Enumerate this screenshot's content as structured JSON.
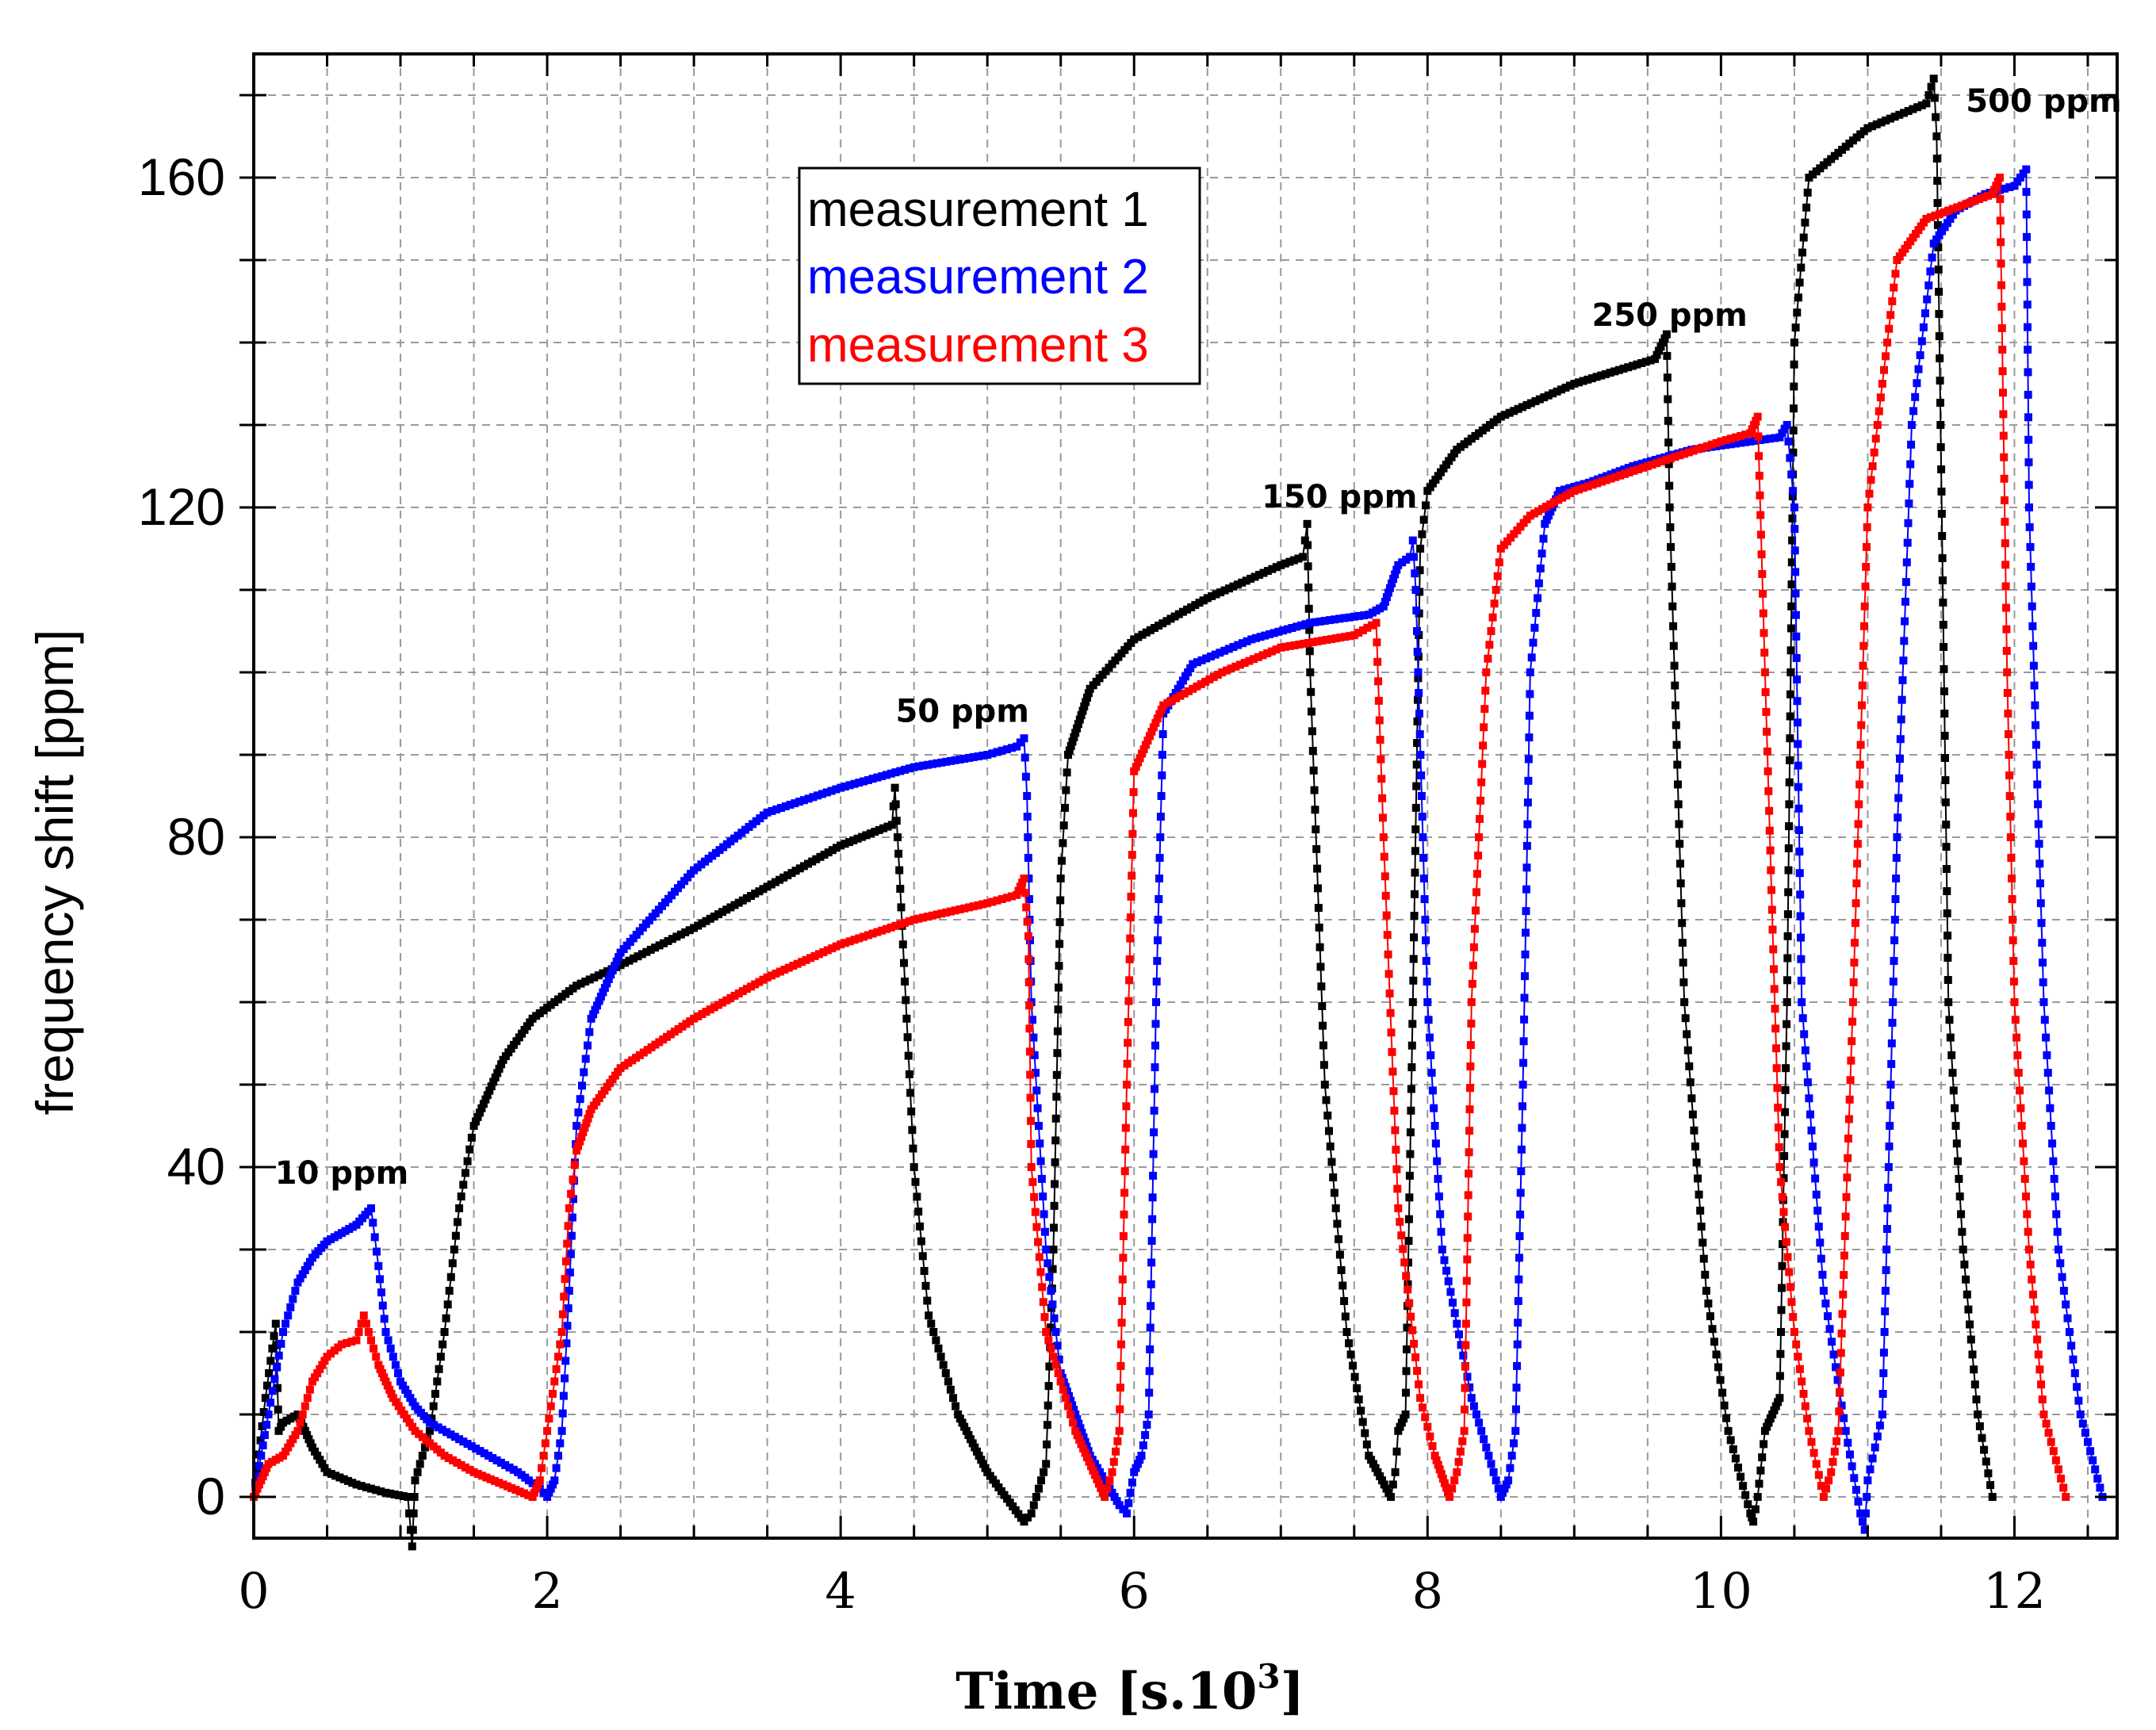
{
  "chart_data": {
    "type": "line",
    "xlabel": "Time [s.10",
    "xlabel_sup": "3",
    "xlabel_end": "]",
    "ylabel": "frequency shift  [ppm]",
    "xlim": [
      0,
      12.7
    ],
    "ylim": [
      -5,
      175
    ],
    "x_ticks": [
      0,
      2,
      4,
      6,
      8,
      10,
      12
    ],
    "y_ticks": [
      0,
      40,
      80,
      120,
      160
    ],
    "grid": true,
    "legend_position": "top-center",
    "annotations": [
      {
        "text": "10 ppm",
        "x": 0.6,
        "y": 38
      },
      {
        "text": "50 ppm",
        "x": 4.83,
        "y": 94
      },
      {
        "text": "150 ppm",
        "x": 7.4,
        "y": 120
      },
      {
        "text": "250 ppm",
        "x": 9.65,
        "y": 142
      },
      {
        "text": "500 ppm",
        "x": 12.2,
        "y": 168
      }
    ],
    "series": [
      {
        "name": "measurement 1",
        "color": "#000000",
        "points": [
          [
            0,
            0
          ],
          [
            0.08,
            12
          ],
          [
            0.15,
            21
          ],
          [
            0.17,
            8
          ],
          [
            0.2,
            9
          ],
          [
            0.3,
            10
          ],
          [
            0.4,
            6
          ],
          [
            0.5,
            3
          ],
          [
            0.7,
            1.5
          ],
          [
            0.9,
            0.5
          ],
          [
            1.05,
            0
          ],
          [
            1.08,
            -6
          ],
          [
            1.1,
            2
          ],
          [
            1.2,
            8
          ],
          [
            1.3,
            20
          ],
          [
            1.4,
            35
          ],
          [
            1.5,
            45
          ],
          [
            1.7,
            53
          ],
          [
            1.9,
            58
          ],
          [
            2.2,
            62
          ],
          [
            2.5,
            64.5
          ],
          [
            3.0,
            69
          ],
          [
            3.5,
            74
          ],
          [
            4.0,
            79
          ],
          [
            4.35,
            81.5
          ],
          [
            4.37,
            86
          ],
          [
            4.4,
            76
          ],
          [
            4.5,
            40
          ],
          [
            4.6,
            22
          ],
          [
            4.8,
            10
          ],
          [
            5.0,
            3
          ],
          [
            5.25,
            -3
          ],
          [
            5.3,
            -2
          ],
          [
            5.35,
            1
          ],
          [
            5.4,
            4
          ],
          [
            5.45,
            30
          ],
          [
            5.5,
            75
          ],
          [
            5.55,
            90
          ],
          [
            5.7,
            98
          ],
          [
            6.0,
            104
          ],
          [
            6.5,
            109
          ],
          [
            7.0,
            113
          ],
          [
            7.15,
            114
          ],
          [
            7.18,
            118
          ],
          [
            7.2,
            100
          ],
          [
            7.3,
            50
          ],
          [
            7.45,
            20
          ],
          [
            7.6,
            5
          ],
          [
            7.75,
            0
          ],
          [
            7.78,
            3
          ],
          [
            7.8,
            8
          ],
          [
            7.85,
            10
          ],
          [
            7.9,
            60
          ],
          [
            7.95,
            115
          ],
          [
            8.0,
            122
          ],
          [
            8.2,
            127
          ],
          [
            8.5,
            131
          ],
          [
            9.0,
            135
          ],
          [
            9.55,
            138
          ],
          [
            9.63,
            141
          ],
          [
            9.65,
            120
          ],
          [
            9.75,
            60
          ],
          [
            9.9,
            25
          ],
          [
            10.05,
            8
          ],
          [
            10.2,
            -2
          ],
          [
            10.22,
            -3
          ],
          [
            10.25,
            0
          ],
          [
            10.3,
            8
          ],
          [
            10.4,
            12
          ],
          [
            10.45,
            60
          ],
          [
            10.5,
            140
          ],
          [
            10.6,
            160
          ],
          [
            11.0,
            166
          ],
          [
            11.4,
            169
          ],
          [
            11.45,
            172
          ],
          [
            11.47,
            165
          ],
          [
            11.55,
            60
          ],
          [
            11.65,
            30
          ],
          [
            11.75,
            10
          ],
          [
            11.85,
            0
          ]
        ]
      },
      {
        "name": "measurement 2",
        "color": "#0000ff",
        "points": [
          [
            0,
            0
          ],
          [
            0.05,
            5
          ],
          [
            0.1,
            10
          ],
          [
            0.2,
            20
          ],
          [
            0.3,
            26
          ],
          [
            0.4,
            29
          ],
          [
            0.5,
            31
          ],
          [
            0.6,
            32
          ],
          [
            0.7,
            33
          ],
          [
            0.8,
            35
          ],
          [
            0.85,
            28
          ],
          [
            0.9,
            20
          ],
          [
            1.0,
            14
          ],
          [
            1.1,
            11
          ],
          [
            1.2,
            9
          ],
          [
            1.4,
            7
          ],
          [
            1.6,
            5
          ],
          [
            1.8,
            3
          ],
          [
            1.95,
            1
          ],
          [
            2.0,
            0
          ],
          [
            2.05,
            2
          ],
          [
            2.1,
            8
          ],
          [
            2.15,
            25
          ],
          [
            2.2,
            45
          ],
          [
            2.3,
            58
          ],
          [
            2.5,
            66
          ],
          [
            3.0,
            76
          ],
          [
            3.5,
            83
          ],
          [
            4.0,
            86
          ],
          [
            4.5,
            88.5
          ],
          [
            5.0,
            90
          ],
          [
            5.2,
            91
          ],
          [
            5.25,
            92
          ],
          [
            5.27,
            85
          ],
          [
            5.3,
            60
          ],
          [
            5.4,
            30
          ],
          [
            5.5,
            15
          ],
          [
            5.7,
            5
          ],
          [
            5.9,
            -1
          ],
          [
            5.95,
            -2
          ],
          [
            6.0,
            3
          ],
          [
            6.05,
            5
          ],
          [
            6.1,
            10
          ],
          [
            6.15,
            60
          ],
          [
            6.2,
            95
          ],
          [
            6.4,
            101
          ],
          [
            6.8,
            104
          ],
          [
            7.2,
            106
          ],
          [
            7.6,
            107
          ],
          [
            7.7,
            108
          ],
          [
            7.8,
            113
          ],
          [
            7.88,
            114
          ],
          [
            7.9,
            116
          ],
          [
            7.92,
            110
          ],
          [
            8.0,
            60
          ],
          [
            8.1,
            30
          ],
          [
            8.3,
            12
          ],
          [
            8.5,
            0
          ],
          [
            8.55,
            2
          ],
          [
            8.6,
            8
          ],
          [
            8.65,
            50
          ],
          [
            8.7,
            100
          ],
          [
            8.8,
            118
          ],
          [
            8.9,
            122
          ],
          [
            9.1,
            123
          ],
          [
            9.4,
            125
          ],
          [
            9.8,
            127
          ],
          [
            10.2,
            128
          ],
          [
            10.4,
            128.5
          ],
          [
            10.45,
            130
          ],
          [
            10.5,
            120
          ],
          [
            10.55,
            60
          ],
          [
            10.7,
            25
          ],
          [
            10.85,
            8
          ],
          [
            10.95,
            -2
          ],
          [
            10.98,
            -4
          ],
          [
            11.0,
            2
          ],
          [
            11.1,
            10
          ],
          [
            11.2,
            80
          ],
          [
            11.3,
            130
          ],
          [
            11.45,
            152
          ],
          [
            11.6,
            156
          ],
          [
            11.8,
            158
          ],
          [
            12.0,
            159
          ],
          [
            12.08,
            161
          ],
          [
            12.1,
            120
          ],
          [
            12.2,
            60
          ],
          [
            12.3,
            30
          ],
          [
            12.45,
            10
          ],
          [
            12.6,
            0
          ]
        ]
      },
      {
        "name": "measurement 3",
        "color": "#ff0000",
        "points": [
          [
            0,
            0
          ],
          [
            0.05,
            2
          ],
          [
            0.1,
            4
          ],
          [
            0.2,
            5
          ],
          [
            0.3,
            8
          ],
          [
            0.4,
            14
          ],
          [
            0.5,
            17
          ],
          [
            0.6,
            18.5
          ],
          [
            0.7,
            19
          ],
          [
            0.75,
            22
          ],
          [
            0.8,
            19
          ],
          [
            0.85,
            16
          ],
          [
            0.95,
            12
          ],
          [
            1.1,
            8
          ],
          [
            1.3,
            5
          ],
          [
            1.5,
            3
          ],
          [
            1.7,
            1.5
          ],
          [
            1.9,
            0
          ],
          [
            1.95,
            2
          ],
          [
            2.0,
            8
          ],
          [
            2.1,
            20
          ],
          [
            2.15,
            35
          ],
          [
            2.2,
            42
          ],
          [
            2.3,
            47
          ],
          [
            2.5,
            52
          ],
          [
            3.0,
            58
          ],
          [
            3.5,
            63
          ],
          [
            4.0,
            67
          ],
          [
            4.5,
            70
          ],
          [
            5.0,
            72
          ],
          [
            5.2,
            73
          ],
          [
            5.25,
            75
          ],
          [
            5.28,
            68
          ],
          [
            5.3,
            40
          ],
          [
            5.4,
            20
          ],
          [
            5.6,
            8
          ],
          [
            5.8,
            0
          ],
          [
            5.85,
            3
          ],
          [
            5.9,
            8
          ],
          [
            5.95,
            50
          ],
          [
            6.0,
            88
          ],
          [
            6.2,
            96
          ],
          [
            6.6,
            100
          ],
          [
            7.0,
            103
          ],
          [
            7.5,
            104.5
          ],
          [
            7.65,
            106
          ],
          [
            7.7,
            80
          ],
          [
            7.8,
            35
          ],
          [
            7.95,
            12
          ],
          [
            8.05,
            5
          ],
          [
            8.15,
            0
          ],
          [
            8.2,
            3
          ],
          [
            8.25,
            8
          ],
          [
            8.3,
            60
          ],
          [
            8.4,
            100
          ],
          [
            8.5,
            115
          ],
          [
            8.7,
            119
          ],
          [
            9.0,
            122
          ],
          [
            9.5,
            125
          ],
          [
            10.0,
            128
          ],
          [
            10.2,
            129
          ],
          [
            10.25,
            131
          ],
          [
            10.3,
            100
          ],
          [
            10.4,
            40
          ],
          [
            10.5,
            20
          ],
          [
            10.6,
            8
          ],
          [
            10.7,
            0
          ],
          [
            10.75,
            3
          ],
          [
            10.8,
            8
          ],
          [
            10.9,
            60
          ],
          [
            11.0,
            120
          ],
          [
            11.2,
            150
          ],
          [
            11.4,
            155
          ],
          [
            11.7,
            157
          ],
          [
            11.85,
            158
          ],
          [
            11.9,
            160
          ],
          [
            11.95,
            100
          ],
          [
            12.0,
            60
          ],
          [
            12.1,
            30
          ],
          [
            12.2,
            10
          ],
          [
            12.35,
            0
          ]
        ]
      }
    ]
  }
}
